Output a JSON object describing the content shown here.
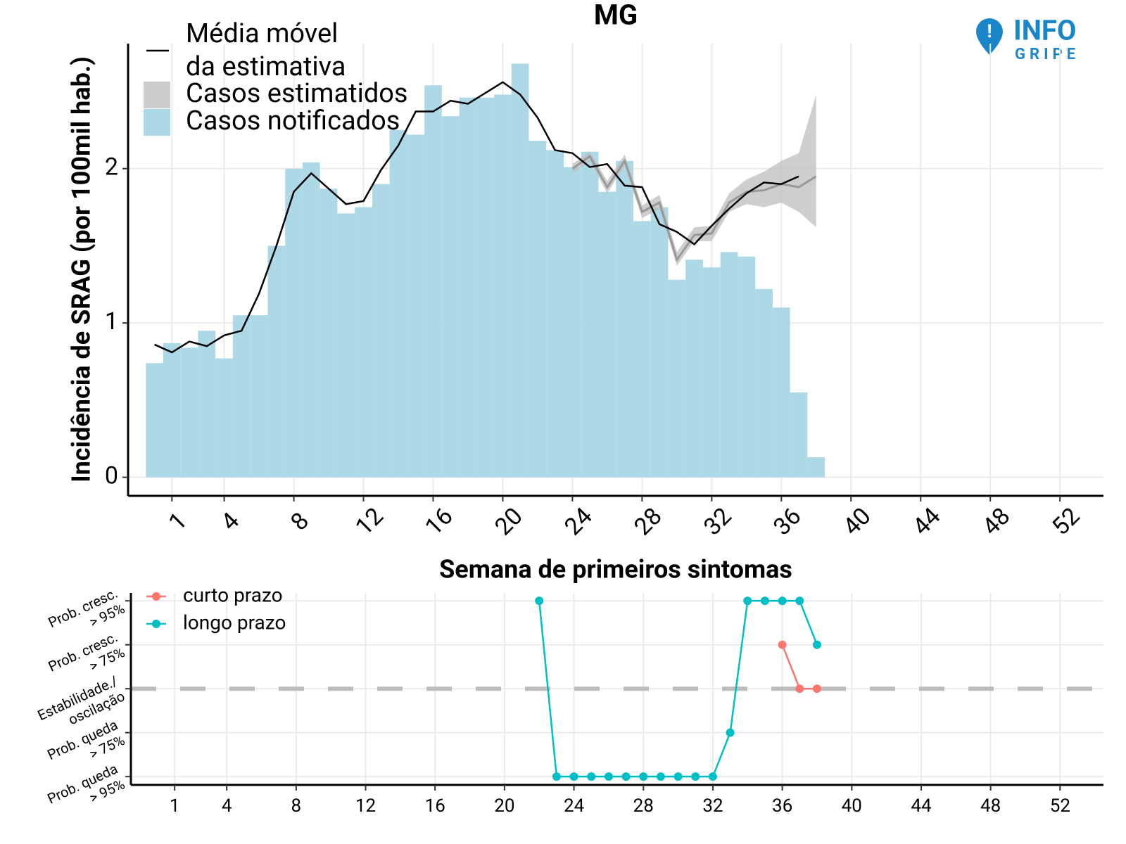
{
  "logo": {
    "line1": "INFO",
    "line2": "GRIPE"
  },
  "chart_data": [
    {
      "type": "bar-line",
      "title": "MG",
      "x_label": "Semana de primeiros sintomas",
      "y_label": "Incidência de SRAG (por 100mil hab.)",
      "xlim": [
        -1.52,
        54.5
      ],
      "ylim": [
        -0.12,
        2.81
      ],
      "xticks": [
        1,
        4,
        8,
        12,
        16,
        20,
        24,
        28,
        32,
        36,
        40,
        44,
        48,
        52
      ],
      "yticks": [
        0,
        1,
        2
      ],
      "grid": true,
      "bars": {
        "name": "Casos notificados",
        "color": "#add8e6",
        "x": [
          0,
          1,
          2,
          3,
          4,
          5,
          6,
          7,
          8,
          9,
          10,
          11,
          12,
          13,
          14,
          15,
          16,
          17,
          18,
          19,
          20,
          21,
          22,
          23,
          24,
          25,
          26,
          27,
          28,
          29,
          30,
          31,
          32,
          33,
          34,
          35,
          36,
          37,
          38
        ],
        "values": [
          0.74,
          0.87,
          0.84,
          0.95,
          0.77,
          1.05,
          1.05,
          1.5,
          2.0,
          2.04,
          1.87,
          1.71,
          1.75,
          1.9,
          2.25,
          2.22,
          2.54,
          2.34,
          2.46,
          2.46,
          2.48,
          2.68,
          2.18,
          2.12,
          2.01,
          2.11,
          1.85,
          2.05,
          1.66,
          1.75,
          1.28,
          1.41,
          1.36,
          1.46,
          1.43,
          1.22,
          1.1,
          0.55,
          0.13
        ]
      },
      "line": {
        "name": [
          "Média móvel",
          "da estimativa"
        ],
        "color": "#000000",
        "x": [
          0,
          1,
          2,
          3,
          4,
          5,
          6,
          7,
          8,
          9,
          10,
          11,
          12,
          13,
          14,
          15,
          16,
          17,
          18,
          19,
          20,
          21,
          22,
          23,
          24,
          25,
          26,
          27,
          28,
          29,
          30,
          31,
          32,
          33,
          34,
          35,
          36,
          37
        ],
        "values": [
          0.86,
          0.81,
          0.88,
          0.85,
          0.92,
          0.95,
          1.19,
          1.5,
          1.85,
          1.97,
          1.87,
          1.77,
          1.79,
          1.99,
          2.15,
          2.37,
          2.37,
          2.44,
          2.42,
          2.49,
          2.56,
          2.48,
          2.33,
          2.12,
          2.1,
          2.01,
          2.03,
          1.89,
          1.88,
          1.64,
          1.59,
          1.51,
          1.63,
          1.74,
          1.84,
          1.91,
          1.9,
          1.95
        ]
      },
      "estimate": {
        "name": "Casos estimatidos",
        "color": "#bdbdbd",
        "x": [
          24,
          25,
          26,
          27,
          28,
          29,
          30,
          31,
          32,
          33,
          34,
          35,
          36,
          37,
          38
        ],
        "values": [
          2.0,
          2.08,
          1.88,
          2.05,
          1.72,
          1.78,
          1.41,
          1.57,
          1.58,
          1.78,
          1.85,
          1.86,
          1.9,
          1.88,
          1.95
        ],
        "lower": [
          1.97,
          2.05,
          1.84,
          2.02,
          1.68,
          1.74,
          1.37,
          1.53,
          1.53,
          1.72,
          1.77,
          1.75,
          1.78,
          1.72,
          1.62
        ],
        "upper": [
          2.03,
          2.11,
          1.92,
          2.09,
          1.76,
          1.83,
          1.46,
          1.62,
          1.63,
          1.84,
          1.93,
          1.98,
          2.05,
          2.1,
          2.48
        ]
      }
    },
    {
      "type": "line",
      "xlim": [
        -1.52,
        54.5
      ],
      "ylim": [
        -2.19,
        2.18
      ],
      "xticks": [
        1,
        4,
        8,
        12,
        16,
        20,
        24,
        28,
        32,
        36,
        40,
        44,
        48,
        52
      ],
      "yticks": [
        {
          "value": 2,
          "label": [
            "Prob. cresc.",
            "> 95%"
          ]
        },
        {
          "value": 1,
          "label": [
            "Prob. cresc.",
            "> 75%"
          ]
        },
        {
          "value": 0,
          "label": [
            "Estabilidade./",
            "oscilação"
          ]
        },
        {
          "value": -1,
          "label": [
            "Prob. queda",
            "> 75%"
          ]
        },
        {
          "value": -2,
          "label": [
            "Prob. queda",
            "> 95%"
          ]
        }
      ],
      "grid": true,
      "hline": 0,
      "series": [
        {
          "name": "curto prazo",
          "color": "#F8766D",
          "x": [
            36,
            37,
            38
          ],
          "values": [
            1,
            0,
            0
          ]
        },
        {
          "name": "longo prazo",
          "color": "#00BFC4",
          "x": [
            22,
            23,
            24,
            25,
            26,
            27,
            28,
            29,
            30,
            31,
            32,
            33,
            34,
            35,
            36,
            37,
            38
          ],
          "values": [
            2,
            -2,
            -2,
            -2,
            -2,
            -2,
            -2,
            -2,
            -2,
            -2,
            -2,
            -1,
            2,
            2,
            2,
            2,
            1
          ]
        }
      ]
    }
  ]
}
